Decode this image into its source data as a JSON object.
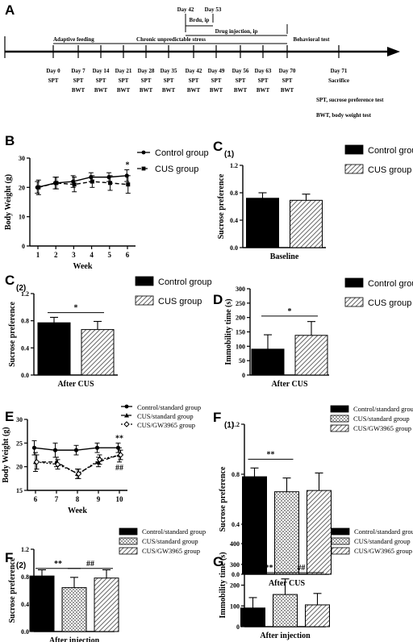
{
  "panel_a": {
    "label": "A",
    "top_days": [
      "Day 42",
      "Day 53"
    ],
    "brdu": "Brdu, ip",
    "drug": "Drug injection, ip",
    "stress": "Chronic unpredictable stress",
    "adaptive": "Adaptive feeding",
    "behavioral": "Behavioral test",
    "days": [
      "Day 0",
      "Day 7",
      "Day 14",
      "Day 21",
      "Day 28",
      "Day 35",
      "Day 42",
      "Day 49",
      "Day 56",
      "Day 63",
      "Day 70"
    ],
    "tests": [
      [
        "SPT"
      ],
      [
        "SPT",
        "BWT"
      ],
      [
        "SPT",
        "BWT"
      ],
      [
        "SPT",
        "BWT"
      ],
      [
        "SPT",
        "BWT"
      ],
      [
        "SPT",
        "BWT"
      ],
      [
        "SPT",
        "BWT"
      ],
      [
        "SPT",
        "BWT"
      ],
      [
        "SPT",
        "BWT"
      ],
      [
        "SPT",
        "BWT"
      ],
      [
        "SPT",
        "BWT"
      ]
    ],
    "day71": "Day 71",
    "sacrifice": "Sacrifice",
    "notes": [
      "SPT, sucrose preference test",
      "BWT, body weight test"
    ]
  },
  "colors": {
    "black": "#000000",
    "white": "#ffffff",
    "hatch": "#666666",
    "checker": "#bbbbbb"
  },
  "chart_data": [
    {
      "id": "B",
      "panel": "B",
      "type": "line",
      "xlabel": "Week",
      "ylabel": "Body Weight (g)",
      "ylim": [
        0,
        30
      ],
      "yticks": [
        0,
        10,
        20,
        30
      ],
      "x": [
        1,
        2,
        3,
        4,
        5,
        6
      ],
      "xticks": [
        "1",
        "2",
        "3",
        "4",
        "5",
        "6"
      ],
      "series": [
        {
          "name": "Control group",
          "values": [
            20,
            21.5,
            22,
            23.5,
            23.5,
            24
          ],
          "err": [
            2,
            2,
            2,
            1.5,
            1.5,
            2
          ],
          "style": "solid",
          "marker": "circle"
        },
        {
          "name": "CUS group",
          "values": [
            20,
            21.5,
            21,
            22,
            21.5,
            21
          ],
          "err": [
            2.5,
            2,
            2.5,
            2,
            2.5,
            3
          ],
          "style": "dashed",
          "marker": "square"
        }
      ],
      "annotations": [
        "*"
      ]
    },
    {
      "id": "C1",
      "panel": "C",
      "panel_sub": "(1)",
      "type": "bar",
      "xlabel": "Baseline",
      "ylabel": "Sucrose preference",
      "ylim": [
        0,
        1.2
      ],
      "yticks": [
        "0.0",
        "0.4",
        "0.8",
        "1.2"
      ],
      "series": [
        {
          "name": "Control group",
          "values": [
            0.72
          ],
          "err": [
            0.08
          ],
          "fill": "black"
        },
        {
          "name": "CUS group",
          "values": [
            0.69
          ],
          "err": [
            0.09
          ],
          "fill": "hatch"
        }
      ],
      "annotations": []
    },
    {
      "id": "C2",
      "panel": "C",
      "panel_sub": "(2)",
      "type": "bar",
      "xlabel": "After CUS",
      "ylabel": "Sucrose preference",
      "ylim": [
        0,
        1.2
      ],
      "yticks": [
        "0.0",
        "0.4",
        "0.8",
        "1.2"
      ],
      "series": [
        {
          "name": "Control group",
          "values": [
            0.77
          ],
          "err": [
            0.08
          ],
          "fill": "black"
        },
        {
          "name": "CUS group",
          "values": [
            0.67
          ],
          "err": [
            0.12
          ],
          "fill": "hatch"
        }
      ],
      "annotations": [
        "*"
      ]
    },
    {
      "id": "D",
      "panel": "D",
      "panel_sub": "",
      "type": "bar",
      "xlabel": "After CUS",
      "ylabel": "Immobility time (s)",
      "ylim": [
        0,
        300
      ],
      "yticks": [
        "0",
        "50",
        "100",
        "150",
        "200",
        "250",
        "300"
      ],
      "series": [
        {
          "name": "Control group",
          "values": [
            90
          ],
          "err": [
            50
          ],
          "fill": "black"
        },
        {
          "name": "CUS group",
          "values": [
            138
          ],
          "err": [
            48
          ],
          "fill": "hatch"
        }
      ],
      "annotations": [
        "*"
      ]
    },
    {
      "id": "E",
      "panel": "E",
      "type": "line",
      "xlabel": "Week",
      "ylabel": "Body Weight (g)",
      "ylim": [
        15,
        30
      ],
      "yticks": [
        15,
        20,
        25,
        30
      ],
      "x": [
        6,
        7,
        8,
        9,
        10
      ],
      "xticks": [
        "6",
        "7",
        "8",
        "9",
        "10"
      ],
      "series": [
        {
          "name": "Control/standard group",
          "values": [
            24,
            23.5,
            23.5,
            24,
            24
          ],
          "err": [
            1.5,
            1.5,
            1,
            1,
            1
          ],
          "style": "solid",
          "marker": "circle"
        },
        {
          "name": "CUS/standard group",
          "values": [
            21,
            21,
            18.5,
            21,
            22.5
          ],
          "err": [
            2,
            1,
            1,
            1,
            1.5
          ],
          "style": "dashed",
          "marker": "triangle"
        },
        {
          "name": "CUS/GW3965 group",
          "values": [
            21,
            20.5,
            18.5,
            21.5,
            22.5
          ],
          "err": [
            1.5,
            1,
            1,
            1,
            1
          ],
          "style": "dotted",
          "marker": "diamond"
        }
      ],
      "annotations": [
        "**",
        "##"
      ]
    },
    {
      "id": "F1",
      "panel": "F",
      "panel_sub": "(1)",
      "type": "bar",
      "xlabel": "After CUS",
      "ylabel": "Sucrose preference",
      "ylim": [
        0,
        1.2
      ],
      "yticks": [
        "0.0",
        "0.4",
        "0.8",
        "1.2"
      ],
      "series": [
        {
          "name": "Control/standard group",
          "values": [
            0.78
          ],
          "err": [
            0.07
          ],
          "fill": "black"
        },
        {
          "name": "CUS/standard group",
          "values": [
            0.66
          ],
          "err": [
            0.11
          ],
          "fill": "checker"
        },
        {
          "name": "CUS/GW3965 group",
          "values": [
            0.67
          ],
          "err": [
            0.14
          ],
          "fill": "hatch"
        }
      ],
      "annotations": [
        "**"
      ]
    },
    {
      "id": "F2",
      "panel": "F",
      "panel_sub": "(2)",
      "type": "bar",
      "xlabel": "After injection",
      "ylabel": "Sucrose preference",
      "ylim": [
        0,
        1.2
      ],
      "yticks": [
        "0.0",
        "0.4",
        "0.8",
        "1.2"
      ],
      "series": [
        {
          "name": "Control/standard group",
          "values": [
            0.81
          ],
          "err": [
            0.09
          ],
          "fill": "black"
        },
        {
          "name": "CUS/standard group",
          "values": [
            0.64
          ],
          "err": [
            0.15
          ],
          "fill": "checker"
        },
        {
          "name": "CUS/GW3965 group",
          "values": [
            0.78
          ],
          "err": [
            0.12
          ],
          "fill": "hatch"
        }
      ],
      "annotations": [
        "**",
        "##"
      ]
    },
    {
      "id": "G",
      "panel": "G",
      "panel_sub": "",
      "type": "bar",
      "xlabel": "After injection",
      "ylabel": "Immobility time (s)",
      "ylim": [
        0,
        400
      ],
      "yticks": [
        "0",
        "100",
        "200",
        "300",
        "400"
      ],
      "series": [
        {
          "name": "Control/standard group",
          "values": [
            90
          ],
          "err": [
            50
          ],
          "fill": "black"
        },
        {
          "name": "CUS/standard group",
          "values": [
            155
          ],
          "err": [
            75
          ],
          "fill": "checker"
        },
        {
          "name": "CUS/GW3965 group",
          "values": [
            105
          ],
          "err": [
            55
          ],
          "fill": "hatch"
        }
      ],
      "annotations": [
        "**",
        "##"
      ]
    }
  ]
}
